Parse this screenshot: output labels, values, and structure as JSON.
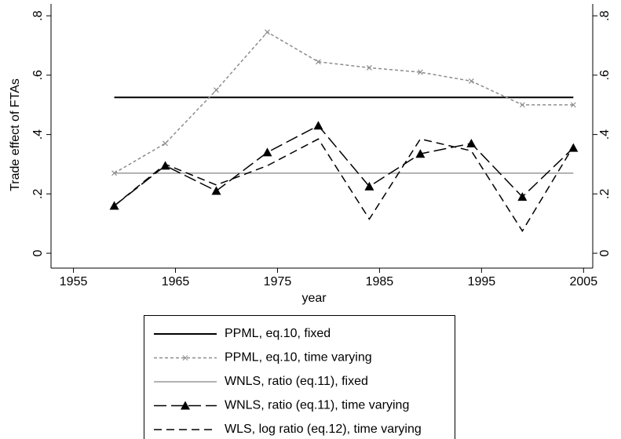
{
  "chart_data": {
    "type": "line",
    "xlabel": "year",
    "ylabel": "Trade effect of FTAs",
    "x": [
      1959,
      1964,
      1969,
      1974,
      1979,
      1984,
      1989,
      1994,
      1999,
      2004
    ],
    "xlim": [
      1952.8,
      2005.9
    ],
    "xticks": [
      1955,
      1965,
      1975,
      1985,
      1995,
      2005
    ],
    "ylim": [
      -0.05,
      0.84
    ],
    "yticks": [
      0,
      {
        "value": 0.2,
        "label": ".2"
      },
      {
        "value": 0.4,
        "label": ".4"
      },
      {
        "value": 0.6,
        "label": ".6"
      },
      {
        "value": 0.8,
        "label": ".8"
      }
    ],
    "series": [
      {
        "name": "PPML, eq.10, fixed",
        "color": "#000000",
        "dash": "solid",
        "values": [
          0.525,
          0.525,
          0.525,
          0.525,
          0.525,
          0.525,
          0.525,
          0.525,
          0.525,
          0.525
        ]
      },
      {
        "name": "PPML, eq.10, time varying",
        "color": "#8c8c8c",
        "dash": "shortdash",
        "marker": "x",
        "values": [
          0.27,
          0.37,
          0.55,
          0.745,
          0.645,
          0.625,
          0.61,
          0.58,
          0.5,
          0.5
        ]
      },
      {
        "name": "WNLS, ratio (eq.11), fixed",
        "color": "#999999",
        "dash": "solid",
        "values": [
          0.27,
          0.27,
          0.27,
          0.27,
          0.27,
          0.27,
          0.27,
          0.27,
          0.27,
          0.27
        ]
      },
      {
        "name": "WNLS, ratio (eq.11), time varying",
        "color": "#000000",
        "dash": "longdash",
        "marker": "triangle",
        "values": [
          0.16,
          0.295,
          0.21,
          0.34,
          0.43,
          0.225,
          0.335,
          0.37,
          0.19,
          0.355
        ]
      },
      {
        "name": "WLS, log ratio (eq.12), time varying",
        "color": "#000000",
        "dash": "dash",
        "values": [
          0.16,
          0.3,
          0.23,
          0.295,
          0.385,
          0.115,
          0.385,
          0.345,
          0.075,
          0.36
        ]
      }
    ]
  }
}
